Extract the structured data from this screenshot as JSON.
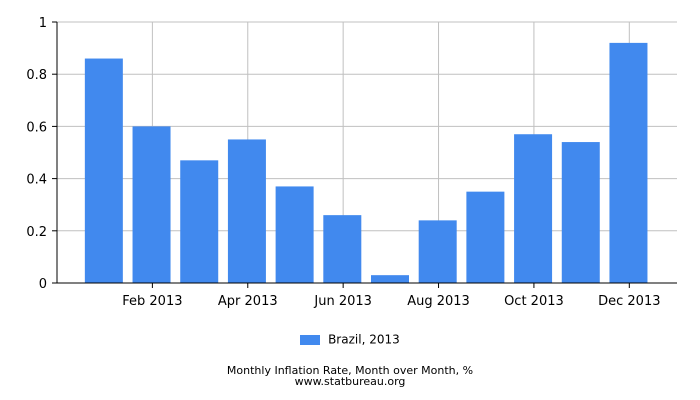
{
  "chart_data": {
    "type": "bar",
    "categories": [
      "Jan 2013",
      "Feb 2013",
      "Mar 2013",
      "Apr 2013",
      "May 2013",
      "Jun 2013",
      "Jul 2013",
      "Aug 2013",
      "Sep 2013",
      "Oct 2013",
      "Nov 2013",
      "Dec 2013"
    ],
    "x_tick_labels": [
      "Feb 2013",
      "Apr 2013",
      "Jun 2013",
      "Aug 2013",
      "Oct 2013",
      "Dec 2013"
    ],
    "series": [
      {
        "name": "Brazil, 2013",
        "color": "#4189EE",
        "values": [
          0.86,
          0.6,
          0.47,
          0.55,
          0.37,
          0.26,
          0.03,
          0.24,
          0.35,
          0.57,
          0.54,
          0.92
        ]
      }
    ],
    "ylim": [
      0,
      1
    ],
    "y_ticks": [
      0,
      0.2,
      0.4,
      0.6,
      0.8,
      1
    ],
    "y_tick_labels": [
      "0",
      "0.2",
      "0.4",
      "0.6",
      "0.8",
      "1"
    ],
    "grid": true,
    "legend_position": "bottom-center"
  },
  "caption": {
    "title": "Monthly Inflation Rate, Month over Month, %",
    "source": "www.statbureau.org"
  }
}
